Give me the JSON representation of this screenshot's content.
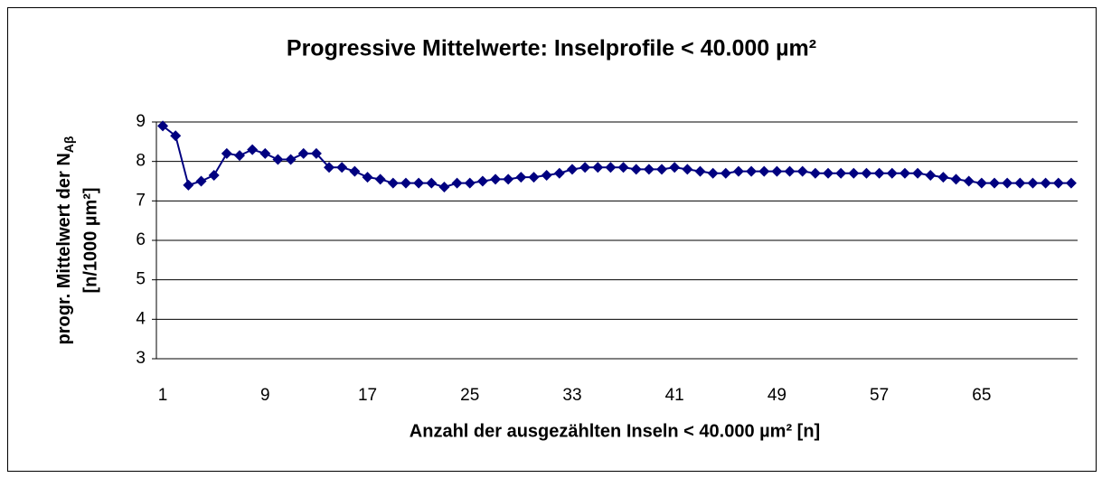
{
  "chart_data": {
    "type": "line",
    "title": "Progressive Mittelwerte: Inselprofile < 40.000 µm²",
    "x_label": "Anzahl der ausgezählten Inseln < 40.000 µm² [n]",
    "y_label": {
      "text": "progr. Mittelwert der N",
      "subscript": "Aβ",
      "line2": "[n/1000 µm²]"
    },
    "categories": [
      "1",
      null,
      null,
      null,
      null,
      null,
      null,
      null,
      "9",
      null,
      null,
      null,
      null,
      null,
      null,
      null,
      "17",
      null,
      null,
      null,
      null,
      null,
      null,
      null,
      "25",
      null,
      null,
      null,
      null,
      null,
      null,
      null,
      "33",
      null,
      null,
      null,
      null,
      null,
      null,
      null,
      "41",
      null,
      null,
      null,
      null,
      null,
      null,
      null,
      "49",
      null,
      null,
      null,
      null,
      null,
      null,
      null,
      "57",
      null,
      null,
      null,
      null,
      null,
      null,
      null,
      "65",
      null,
      null,
      null,
      null,
      null,
      null,
      null
    ],
    "series": [
      {
        "color": "#000080",
        "values": [
          8.9,
          8.65,
          7.4,
          7.5,
          7.65,
          8.2,
          8.15,
          8.3,
          8.2,
          8.05,
          8.05,
          8.2,
          8.2,
          7.85,
          7.85,
          7.75,
          7.6,
          7.55,
          7.45,
          7.45,
          7.45,
          7.45,
          7.35,
          7.45,
          7.45,
          7.5,
          7.55,
          7.55,
          7.6,
          7.6,
          7.65,
          7.7,
          7.8,
          7.85,
          7.85,
          7.85,
          7.85,
          7.8,
          7.8,
          7.8,
          7.85,
          7.8,
          7.75,
          7.7,
          7.7,
          7.75,
          7.75,
          7.75,
          7.75,
          7.75,
          7.75,
          7.7,
          7.7,
          7.7,
          7.7,
          7.7,
          7.7,
          7.7,
          7.7,
          7.7,
          7.65,
          7.6,
          7.55,
          7.5,
          7.45,
          7.45,
          7.45,
          7.45,
          7.45,
          7.45,
          7.45,
          7.45
        ]
      }
    ],
    "ylim": [
      3,
      9
    ],
    "yticks": [
      3,
      4,
      5,
      6,
      7,
      8,
      9
    ],
    "grid": true
  }
}
